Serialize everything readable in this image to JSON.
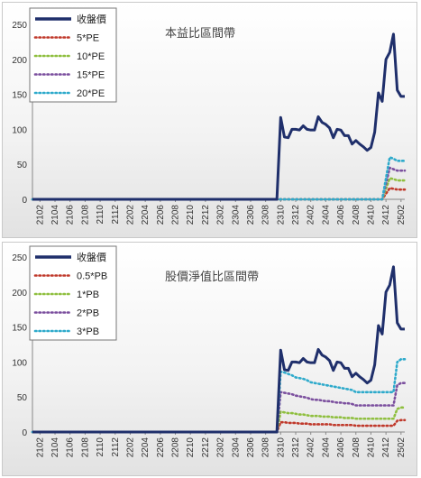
{
  "chart_data": [
    {
      "type": "line",
      "title": "本益比區間帶",
      "ylim": [
        0,
        250
      ],
      "yticks": [
        0,
        50,
        100,
        150,
        200,
        250
      ],
      "x_tick_labels": [
        "2102",
        "2104",
        "2106",
        "2108",
        "2110",
        "2112",
        "2202",
        "2204",
        "2206",
        "2208",
        "2210",
        "2212",
        "2302",
        "2304",
        "2306",
        "2308",
        "2310",
        "2312",
        "2402",
        "2404",
        "2406",
        "2408",
        "2410",
        "2412",
        "2502"
      ],
      "legend_position": "top-left",
      "series": [
        {
          "name": "收盤價",
          "color": "#1f2f6b",
          "dashed": false,
          "values": [
            0,
            0,
            0,
            0,
            0,
            0,
            0,
            0,
            0,
            0,
            0,
            0,
            0,
            0,
            0,
            0,
            0,
            0,
            0,
            0,
            0,
            0,
            0,
            0,
            0,
            0,
            0,
            0,
            0,
            0,
            0,
            0,
            0,
            0,
            0,
            0,
            0,
            0,
            0,
            0,
            0,
            0,
            0,
            0,
            0,
            0,
            0,
            0,
            0,
            0,
            0,
            0,
            0,
            0,
            0,
            0,
            0,
            0,
            0,
            0,
            0,
            0,
            0,
            0,
            0,
            0,
            117,
            89,
            88,
            100,
            100,
            99,
            105,
            100,
            99,
            99,
            118,
            110,
            107,
            102,
            88,
            100,
            99,
            91,
            91,
            79,
            84,
            79,
            75,
            70,
            74,
            96,
            152,
            140,
            200,
            210,
            236,
            156,
            147,
            147
          ]
        },
        {
          "name": "5*PE",
          "color": "#c0392b",
          "dashed": true,
          "values": [
            0,
            0,
            0,
            0,
            0,
            0,
            0,
            0,
            0,
            0,
            0,
            0,
            0,
            0,
            0,
            0,
            0,
            0,
            0,
            0,
            0,
            0,
            0,
            0,
            0,
            0,
            0,
            0,
            0,
            0,
            0,
            0,
            0,
            0,
            0,
            0,
            0,
            0,
            0,
            0,
            0,
            0,
            0,
            0,
            0,
            0,
            0,
            0,
            0,
            0,
            0,
            0,
            0,
            0,
            0,
            0,
            0,
            0,
            0,
            0,
            0,
            0,
            0,
            0,
            0,
            0,
            0,
            0,
            0,
            0,
            0,
            0,
            0,
            0,
            0,
            0,
            0,
            0,
            0,
            0,
            0,
            0,
            0,
            0,
            0,
            0,
            0,
            0,
            0,
            0,
            0,
            0,
            0,
            0,
            8,
            16,
            15,
            14,
            14,
            14
          ]
        },
        {
          "name": "10*PE",
          "color": "#8fbf3f",
          "dashed": true,
          "values": [
            0,
            0,
            0,
            0,
            0,
            0,
            0,
            0,
            0,
            0,
            0,
            0,
            0,
            0,
            0,
            0,
            0,
            0,
            0,
            0,
            0,
            0,
            0,
            0,
            0,
            0,
            0,
            0,
            0,
            0,
            0,
            0,
            0,
            0,
            0,
            0,
            0,
            0,
            0,
            0,
            0,
            0,
            0,
            0,
            0,
            0,
            0,
            0,
            0,
            0,
            0,
            0,
            0,
            0,
            0,
            0,
            0,
            0,
            0,
            0,
            0,
            0,
            0,
            0,
            0,
            0,
            0,
            0,
            0,
            0,
            0,
            0,
            0,
            0,
            0,
            0,
            0,
            0,
            0,
            0,
            0,
            0,
            0,
            0,
            0,
            0,
            0,
            0,
            0,
            0,
            0,
            0,
            0,
            0,
            15,
            30,
            29,
            27,
            27,
            27
          ]
        },
        {
          "name": "15*PE",
          "color": "#7b4f9e",
          "dashed": true,
          "values": [
            0,
            0,
            0,
            0,
            0,
            0,
            0,
            0,
            0,
            0,
            0,
            0,
            0,
            0,
            0,
            0,
            0,
            0,
            0,
            0,
            0,
            0,
            0,
            0,
            0,
            0,
            0,
            0,
            0,
            0,
            0,
            0,
            0,
            0,
            0,
            0,
            0,
            0,
            0,
            0,
            0,
            0,
            0,
            0,
            0,
            0,
            0,
            0,
            0,
            0,
            0,
            0,
            0,
            0,
            0,
            0,
            0,
            0,
            0,
            0,
            0,
            0,
            0,
            0,
            0,
            0,
            0,
            0,
            0,
            0,
            0,
            0,
            0,
            0,
            0,
            0,
            0,
            0,
            0,
            0,
            0,
            0,
            0,
            0,
            0,
            0,
            0,
            0,
            0,
            0,
            0,
            0,
            0,
            0,
            22,
            45,
            43,
            41,
            41,
            41
          ]
        },
        {
          "name": "20*PE",
          "color": "#2eaacb",
          "dashed": true,
          "values": [
            0,
            0,
            0,
            0,
            0,
            0,
            0,
            0,
            0,
            0,
            0,
            0,
            0,
            0,
            0,
            0,
            0,
            0,
            0,
            0,
            0,
            0,
            0,
            0,
            0,
            0,
            0,
            0,
            0,
            0,
            0,
            0,
            0,
            0,
            0,
            0,
            0,
            0,
            0,
            0,
            0,
            0,
            0,
            0,
            0,
            0,
            0,
            0,
            0,
            0,
            0,
            0,
            0,
            0,
            0,
            0,
            0,
            0,
            0,
            0,
            0,
            0,
            0,
            0,
            0,
            0,
            0,
            0,
            0,
            0,
            0,
            0,
            0,
            0,
            0,
            0,
            0,
            0,
            0,
            0,
            0,
            0,
            0,
            0,
            0,
            0,
            0,
            0,
            0,
            0,
            0,
            0,
            0,
            0,
            30,
            60,
            58,
            55,
            55,
            55
          ]
        }
      ]
    },
    {
      "type": "line",
      "title": "股價淨值比區間帶",
      "ylim": [
        0,
        250
      ],
      "yticks": [
        0,
        50,
        100,
        150,
        200,
        250
      ],
      "x_tick_labels": [
        "2102",
        "2104",
        "2106",
        "2108",
        "2110",
        "2112",
        "2202",
        "2204",
        "2206",
        "2208",
        "2210",
        "2212",
        "2302",
        "2304",
        "2306",
        "2308",
        "2310",
        "2312",
        "2402",
        "2404",
        "2406",
        "2408",
        "2410",
        "2412",
        "2502"
      ],
      "legend_position": "top-left",
      "series": [
        {
          "name": "收盤價",
          "color": "#1f2f6b",
          "dashed": false,
          "values": [
            0,
            0,
            0,
            0,
            0,
            0,
            0,
            0,
            0,
            0,
            0,
            0,
            0,
            0,
            0,
            0,
            0,
            0,
            0,
            0,
            0,
            0,
            0,
            0,
            0,
            0,
            0,
            0,
            0,
            0,
            0,
            0,
            0,
            0,
            0,
            0,
            0,
            0,
            0,
            0,
            0,
            0,
            0,
            0,
            0,
            0,
            0,
            0,
            0,
            0,
            0,
            0,
            0,
            0,
            0,
            0,
            0,
            0,
            0,
            0,
            0,
            0,
            0,
            0,
            0,
            0,
            117,
            89,
            88,
            100,
            100,
            99,
            105,
            100,
            99,
            99,
            118,
            110,
            107,
            102,
            88,
            100,
            99,
            91,
            91,
            79,
            84,
            79,
            75,
            70,
            74,
            96,
            152,
            140,
            200,
            210,
            236,
            156,
            147,
            147
          ]
        },
        {
          "name": "0.5*PB",
          "color": "#c0392b",
          "dashed": true,
          "values": [
            0,
            0,
            0,
            0,
            0,
            0,
            0,
            0,
            0,
            0,
            0,
            0,
            0,
            0,
            0,
            0,
            0,
            0,
            0,
            0,
            0,
            0,
            0,
            0,
            0,
            0,
            0,
            0,
            0,
            0,
            0,
            0,
            0,
            0,
            0,
            0,
            0,
            0,
            0,
            0,
            0,
            0,
            0,
            0,
            0,
            0,
            0,
            0,
            0,
            0,
            0,
            0,
            0,
            0,
            0,
            0,
            0,
            0,
            0,
            0,
            0,
            0,
            0,
            0,
            0,
            0,
            14,
            14,
            13,
            13,
            13,
            12,
            12,
            12,
            11,
            11,
            11,
            11,
            11,
            11,
            10,
            10,
            10,
            10,
            10,
            10,
            9,
            9,
            9,
            9,
            9,
            9,
            9,
            9,
            9,
            9,
            9,
            16,
            17,
            17
          ]
        },
        {
          "name": "1*PB",
          "color": "#8fbf3f",
          "dashed": true,
          "values": [
            0,
            0,
            0,
            0,
            0,
            0,
            0,
            0,
            0,
            0,
            0,
            0,
            0,
            0,
            0,
            0,
            0,
            0,
            0,
            0,
            0,
            0,
            0,
            0,
            0,
            0,
            0,
            0,
            0,
            0,
            0,
            0,
            0,
            0,
            0,
            0,
            0,
            0,
            0,
            0,
            0,
            0,
            0,
            0,
            0,
            0,
            0,
            0,
            0,
            0,
            0,
            0,
            0,
            0,
            0,
            0,
            0,
            0,
            0,
            0,
            0,
            0,
            0,
            0,
            0,
            0,
            29,
            28,
            27,
            27,
            26,
            25,
            25,
            24,
            23,
            23,
            23,
            22,
            22,
            22,
            21,
            21,
            21,
            20,
            20,
            20,
            19,
            19,
            19,
            19,
            19,
            19,
            19,
            19,
            19,
            19,
            19,
            33,
            35,
            35
          ]
        },
        {
          "name": "2*PB",
          "color": "#7b4f9e",
          "dashed": true,
          "values": [
            0,
            0,
            0,
            0,
            0,
            0,
            0,
            0,
            0,
            0,
            0,
            0,
            0,
            0,
            0,
            0,
            0,
            0,
            0,
            0,
            0,
            0,
            0,
            0,
            0,
            0,
            0,
            0,
            0,
            0,
            0,
            0,
            0,
            0,
            0,
            0,
            0,
            0,
            0,
            0,
            0,
            0,
            0,
            0,
            0,
            0,
            0,
            0,
            0,
            0,
            0,
            0,
            0,
            0,
            0,
            0,
            0,
            0,
            0,
            0,
            0,
            0,
            0,
            0,
            0,
            0,
            57,
            56,
            55,
            54,
            52,
            51,
            50,
            49,
            47,
            46,
            46,
            45,
            44,
            44,
            43,
            42,
            42,
            41,
            41,
            40,
            38,
            38,
            38,
            38,
            38,
            38,
            38,
            38,
            38,
            38,
            38,
            67,
            70,
            70
          ]
        },
        {
          "name": "3*PB",
          "color": "#2eaacb",
          "dashed": true,
          "values": [
            0,
            0,
            0,
            0,
            0,
            0,
            0,
            0,
            0,
            0,
            0,
            0,
            0,
            0,
            0,
            0,
            0,
            0,
            0,
            0,
            0,
            0,
            0,
            0,
            0,
            0,
            0,
            0,
            0,
            0,
            0,
            0,
            0,
            0,
            0,
            0,
            0,
            0,
            0,
            0,
            0,
            0,
            0,
            0,
            0,
            0,
            0,
            0,
            0,
            0,
            0,
            0,
            0,
            0,
            0,
            0,
            0,
            0,
            0,
            0,
            0,
            0,
            0,
            0,
            0,
            0,
            86,
            85,
            83,
            81,
            78,
            77,
            76,
            74,
            71,
            70,
            69,
            68,
            67,
            66,
            65,
            64,
            63,
            62,
            61,
            60,
            57,
            57,
            57,
            57,
            57,
            57,
            57,
            57,
            57,
            57,
            57,
            100,
            104,
            104
          ]
        }
      ]
    }
  ]
}
